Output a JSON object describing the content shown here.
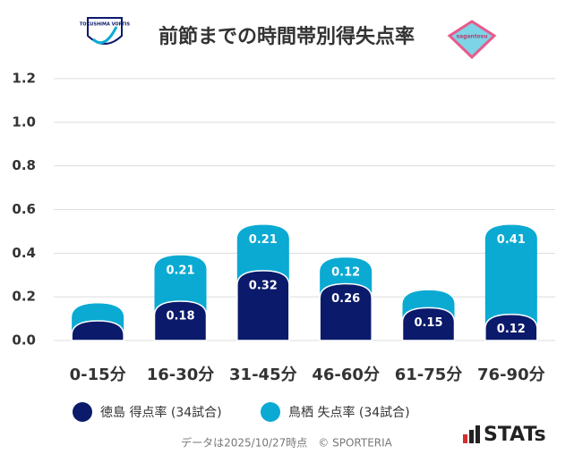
{
  "chart_data": {
    "type": "stacked-bar",
    "title": "前節までの時間帯別得失点率",
    "logos": {
      "home": "TOKUSHIMA VORTIS",
      "away": "sagantosu"
    },
    "categories": [
      "0-15分",
      "16-30分",
      "31-45分",
      "46-60分",
      "61-75分",
      "76-90分"
    ],
    "series": [
      {
        "name": "徳島 得点率 (34試合)",
        "color": "#0b1a6b",
        "values": [
          0.09,
          0.18,
          0.32,
          0.26,
          0.15,
          0.12
        ],
        "value_labels": [
          null,
          "0.18",
          "0.32",
          "0.26",
          "0.15",
          "0.12"
        ]
      },
      {
        "name": "鳥栖 失点率 (34試合)",
        "color": "#0aaad3",
        "values": [
          0.08,
          0.21,
          0.21,
          0.12,
          0.08,
          0.41
        ],
        "value_labels": [
          null,
          "0.21",
          "0.21",
          "0.12",
          null,
          "0.41"
        ]
      }
    ],
    "ylim": [
      0,
      1.2
    ],
    "yticks": [
      {
        "value": 0,
        "label": "0.0"
      },
      0.2,
      0.4,
      0.6,
      0.8,
      {
        "value": 1,
        "label": "1.0"
      },
      1.2
    ],
    "grid": true,
    "footer": "データは2025/10/27時点　© SPORTERIA",
    "brand": "STATs"
  }
}
